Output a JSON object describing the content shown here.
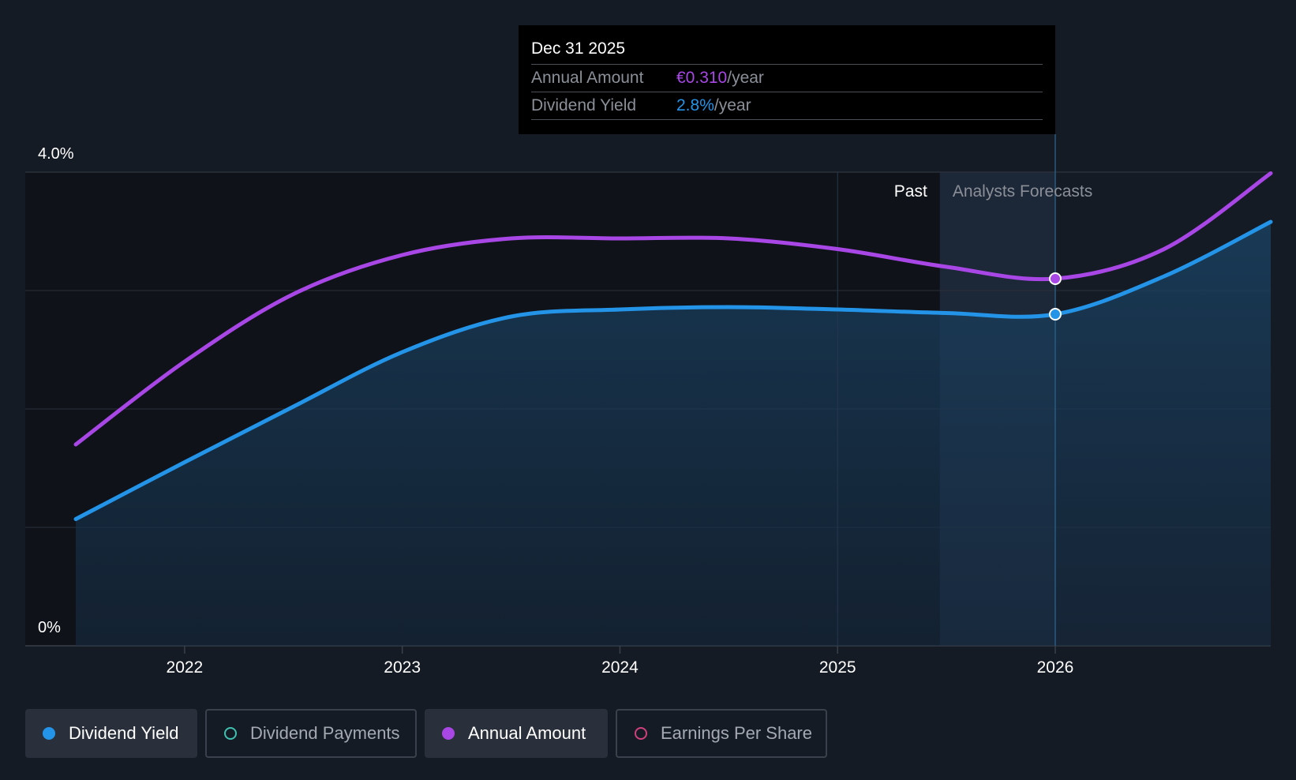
{
  "chart_data": {
    "type": "area",
    "y_axis": {
      "ticks": [
        "4.0%",
        "0%"
      ],
      "ylim": [
        0,
        4.0
      ],
      "grid": true
    },
    "x_axis": {
      "ticks": [
        "2022",
        "2023",
        "2024",
        "2025",
        "2026"
      ],
      "xlim": [
        2021.5,
        2026.99
      ]
    },
    "series": [
      {
        "name": "Dividend Yield",
        "color": "#2394e8",
        "filled": true,
        "points": [
          [
            2021.5,
            1.07
          ],
          [
            2022.0,
            1.55
          ],
          [
            2022.5,
            2.02
          ],
          [
            2023.0,
            2.48
          ],
          [
            2023.5,
            2.78
          ],
          [
            2024.0,
            2.84
          ],
          [
            2024.5,
            2.86
          ],
          [
            2025.0,
            2.84
          ],
          [
            2025.5,
            2.81
          ],
          [
            2026.0,
            2.8
          ],
          [
            2026.5,
            3.12
          ],
          [
            2026.99,
            3.58
          ]
        ]
      },
      {
        "name": "Annual Amount",
        "color": "#a846e6",
        "filled": false,
        "points": [
          [
            2021.5,
            1.7
          ],
          [
            2022.0,
            2.4
          ],
          [
            2022.5,
            2.97
          ],
          [
            2023.0,
            3.3
          ],
          [
            2023.5,
            3.44
          ],
          [
            2024.0,
            3.44
          ],
          [
            2024.5,
            3.44
          ],
          [
            2025.0,
            3.35
          ],
          [
            2025.5,
            3.2
          ],
          [
            2026.0,
            3.1
          ],
          [
            2026.5,
            3.35
          ],
          [
            2026.99,
            3.99
          ]
        ]
      }
    ],
    "regions": {
      "past_label": "Past",
      "forecast_label": "Analysts Forecasts",
      "past_end": 2025.47,
      "forecast_start": 2025.47
    },
    "highlight": {
      "x": 2026.0,
      "series_values": {
        "Dividend Yield": 2.8,
        "Annual Amount": 3.1
      }
    }
  },
  "tooltip": {
    "date": "Dec 31 2025",
    "rows": [
      {
        "label": "Annual Amount",
        "value": "€0.310",
        "unit": "/year",
        "color": "#a846e6"
      },
      {
        "label": "Dividend Yield",
        "value": "2.8%",
        "unit": "/year",
        "color": "#2394e8"
      }
    ]
  },
  "legend": [
    {
      "label": "Dividend Yield",
      "color": "#2394e8",
      "active": true
    },
    {
      "label": "Dividend Payments",
      "color": "#3fc1b0",
      "active": false
    },
    {
      "label": "Annual Amount",
      "color": "#a846e6",
      "active": true
    },
    {
      "label": "Earnings Per Share",
      "color": "#d0407a",
      "active": false
    }
  ]
}
